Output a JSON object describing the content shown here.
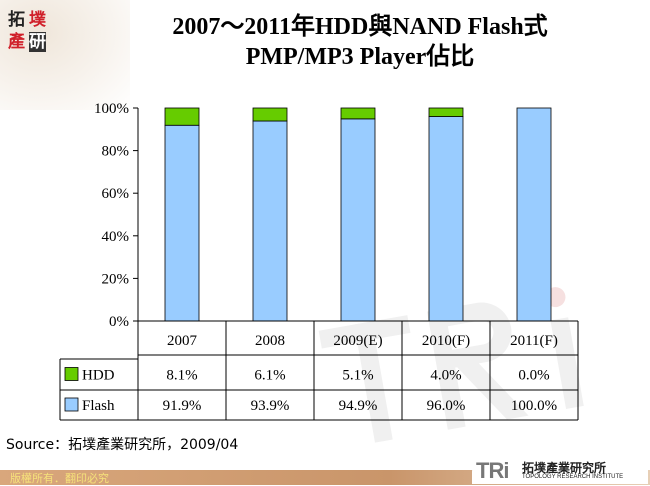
{
  "logo_text": [
    "拓",
    "墣",
    "產",
    "研"
  ],
  "title_line1": "2007～2011年HDD與NAND Flash式",
  "title_line2": "PMP/MP3 Player佔比",
  "source": "Source：拓墣產業研究所，2009/04",
  "footer_text": "版權所有．翻印必究",
  "brand": {
    "mark": "TRi",
    "name": "拓墣產業研究所",
    "sub": "TOPOLOGY RESEARCH INSTITUTE"
  },
  "watermark": "TRi",
  "chart_data": {
    "type": "bar",
    "stacked": true,
    "percent": true,
    "categories": [
      "2007",
      "2008",
      "2009(E)",
      "2010(F)",
      "2011(F)"
    ],
    "series": [
      {
        "name": "HDD",
        "values": [
          8.1,
          6.1,
          5.1,
          4.0,
          0.0
        ],
        "labels": [
          "8.1%",
          "6.1%",
          "5.1%",
          "4.0%",
          "0.0%"
        ],
        "color": "#66cc00"
      },
      {
        "name": "Flash",
        "values": [
          91.9,
          93.9,
          94.9,
          96.0,
          100.0
        ],
        "labels": [
          "91.9%",
          "93.9%",
          "94.9%",
          "96.0%",
          "100.0%"
        ],
        "color": "#99ccff"
      }
    ],
    "ylim": [
      0,
      100
    ],
    "yticks": [
      "0%",
      "20%",
      "40%",
      "60%",
      "80%",
      "100%"
    ],
    "grid": false,
    "legend": "data-table"
  }
}
